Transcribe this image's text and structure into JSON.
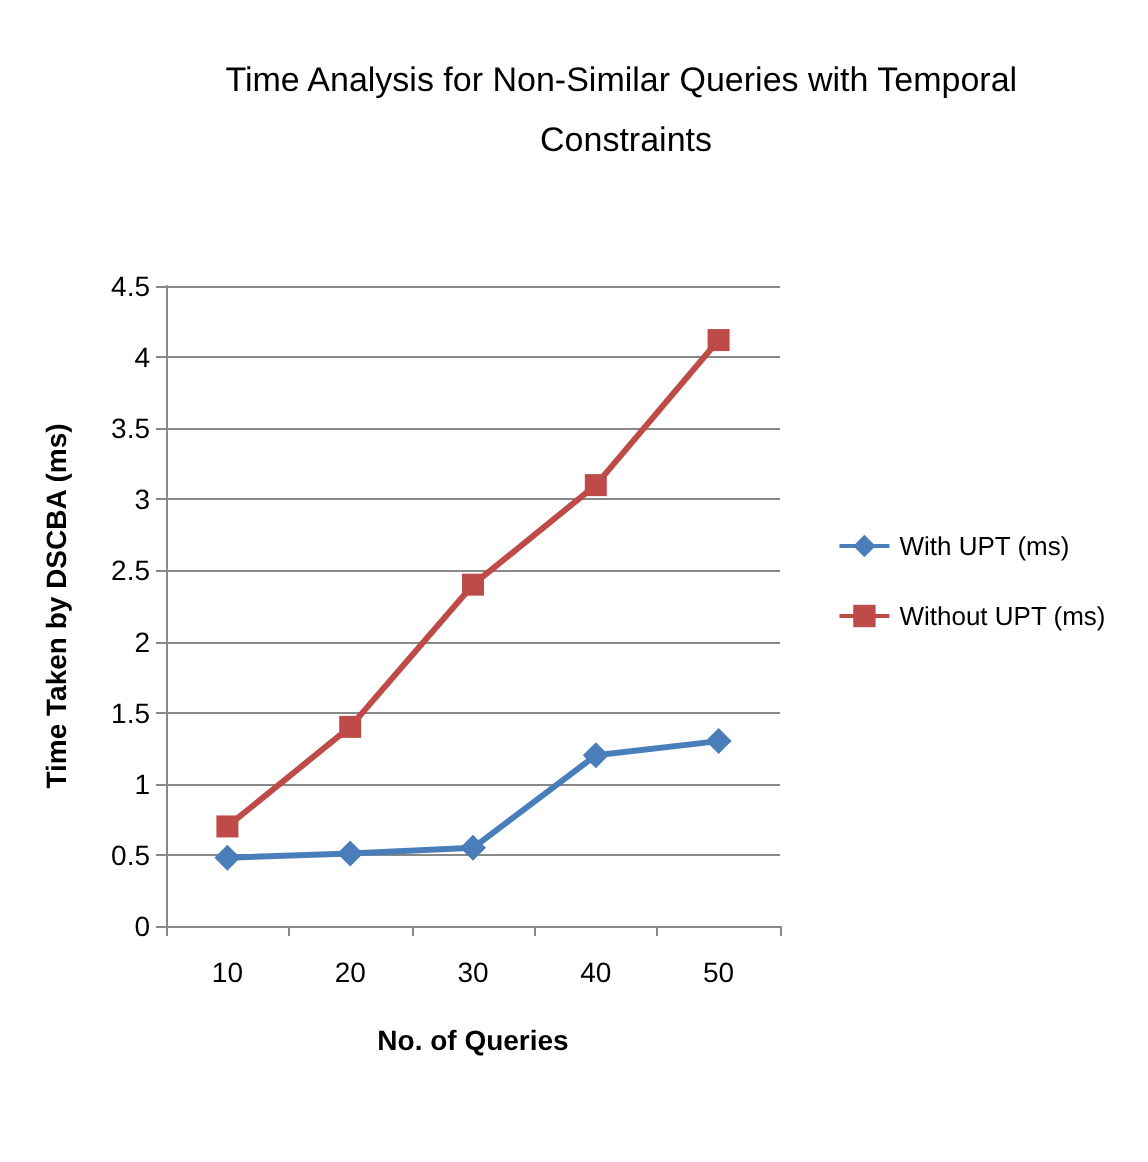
{
  "chart_data": {
    "type": "line",
    "title": "Time Analysis for Non-Similar Queries with Temporal Constraints",
    "xlabel": "No. of Queries",
    "ylabel": "Time Taken by DSCBA (ms)",
    "categories": [
      "10",
      "20",
      "30",
      "40",
      "50"
    ],
    "series": [
      {
        "name": "With UPT (ms)",
        "color": "#4a7ebb",
        "marker": "diamond",
        "values": [
          0.48,
          0.51,
          0.55,
          1.2,
          1.3
        ]
      },
      {
        "name": "Without UPT (ms)",
        "color": "#be4b48",
        "marker": "square",
        "values": [
          0.7,
          1.4,
          2.4,
          3.1,
          4.12
        ]
      }
    ],
    "ylim": [
      0,
      4.5
    ],
    "yticks": [
      0,
      0.5,
      1,
      1.5,
      2,
      2.5,
      3,
      3.5,
      4,
      4.5
    ],
    "grid": "y",
    "legend": "right"
  }
}
